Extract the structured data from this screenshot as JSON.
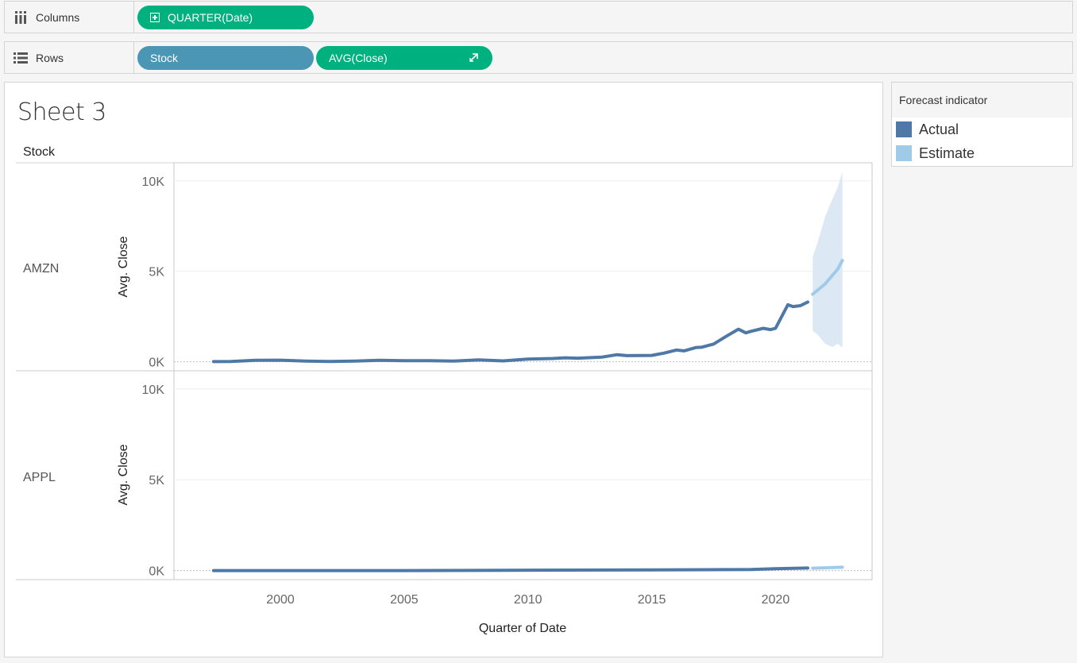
{
  "shelves": {
    "columns": {
      "label": "Columns",
      "pill": "QUARTER(Date)"
    },
    "rows": {
      "label": "Rows",
      "pills": [
        "Stock",
        "AVG(Close)"
      ]
    }
  },
  "sheet": {
    "title": "Sheet 3",
    "row_header": "Stock",
    "x_axis_title": "Quarter of Date",
    "panes": [
      {
        "stock": "AMZN",
        "y_axis_title": "Avg. Close"
      },
      {
        "stock": "APPL",
        "y_axis_title": "Avg. Close"
      }
    ]
  },
  "legend": {
    "title": "Forecast indicator",
    "items": [
      {
        "label": "Actual",
        "color": "#4e79a7"
      },
      {
        "label": "Estimate",
        "color": "#a0cbe8"
      }
    ]
  },
  "chart_data": {
    "type": "line",
    "x_ticks": [
      2000,
      2005,
      2010,
      2015,
      2020
    ],
    "y_ticks": [
      0,
      5000,
      10000
    ],
    "y_tick_labels": [
      "0K",
      "5K",
      "10K"
    ],
    "xlim": [
      1995.7,
      2023.9
    ],
    "ylim": [
      -500,
      11000
    ],
    "xlabel": "Quarter of Date",
    "ylabel": "Avg. Close",
    "series": [
      {
        "name": "Actual",
        "panel": "AMZN",
        "x": [
          1997.3,
          1998,
          1999,
          2000,
          2001,
          2002,
          2003,
          2004,
          2005,
          2006,
          2007,
          2008,
          2009,
          2010,
          2011,
          2011.5,
          2012,
          2013,
          2013.6,
          2014,
          2015,
          2015.5,
          2016,
          2016.3,
          2016.8,
          2017,
          2017.5,
          2018,
          2018.5,
          2018.8,
          2019,
          2019.5,
          2019.8,
          2020,
          2020.5,
          2020.7,
          2021,
          2021.3
        ],
        "y": [
          10,
          20,
          80,
          90,
          40,
          20,
          40,
          80,
          60,
          60,
          40,
          100,
          50,
          150,
          180,
          220,
          200,
          260,
          390,
          340,
          350,
          480,
          650,
          600,
          790,
          800,
          980,
          1400,
          1800,
          1600,
          1680,
          1850,
          1780,
          1850,
          3150,
          3050,
          3100,
          3300
        ]
      },
      {
        "name": "Estimate",
        "panel": "AMZN",
        "x": [
          2021.5,
          2022,
          2022.5,
          2022.7
        ],
        "y": [
          3730,
          4300,
          5100,
          5600
        ],
        "band": {
          "x": [
            2021.5,
            2021.7,
            2022,
            2022.3,
            2022.5,
            2022.7
          ],
          "upper": [
            5800,
            6600,
            8000,
            9000,
            9600,
            10500
          ],
          "lower": [
            1700,
            1500,
            1000,
            800,
            1000,
            800
          ]
        }
      },
      {
        "name": "Actual",
        "panel": "APPL",
        "x": [
          1997.3,
          2000,
          2005,
          2010,
          2015,
          2018,
          2019,
          2020,
          2021.3
        ],
        "y": [
          0,
          0,
          0,
          20,
          40,
          50,
          60,
          100,
          140
        ]
      },
      {
        "name": "Estimate",
        "panel": "APPL",
        "x": [
          2021.5,
          2022,
          2022.7
        ],
        "y": [
          130,
          150,
          180
        ]
      }
    ]
  }
}
